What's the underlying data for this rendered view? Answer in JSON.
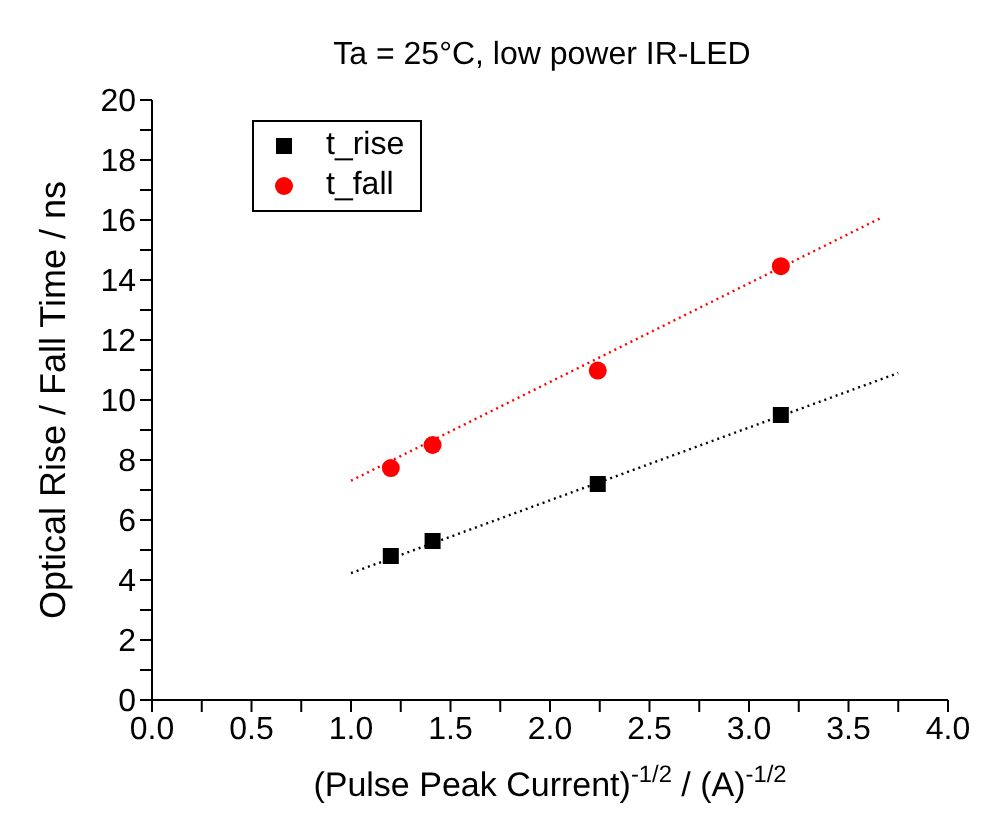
{
  "chart_data": {
    "type": "scatter",
    "title": "Ta = 25°C, low power IR-LED",
    "xlabel": "(Pulse Peak Current)$^{-1/2}$ / (A)$^{-1/2}$",
    "ylabel": "Optical Rise / Fall Time / ns",
    "x": [
      1.2,
      1.41,
      2.24,
      3.16
    ],
    "series": [
      {
        "name": "t_rise",
        "color": "#000000",
        "marker": "square",
        "values": [
          4.8,
          5.3,
          7.2,
          9.5
        ]
      },
      {
        "name": "t_fall",
        "color": "#ff0000",
        "marker": "circle",
        "values": [
          7.73,
          8.5,
          10.98,
          14.46
        ]
      },
      {
        "type": "line",
        "color": "#000000",
        "x": [
          1.0,
          3.75
        ],
        "values": [
          4.23,
          10.9
        ],
        "marker": "none",
        "line_style": "dotted"
      },
      {
        "type": "line",
        "color": "#ff0000",
        "x": [
          1.0,
          3.66
        ],
        "values": [
          7.31,
          16.06
        ],
        "marker": "none",
        "line_style": "dotted"
      }
    ],
    "xlim": [
      0,
      4
    ],
    "xticks": [
      {
        "value": 0,
        "label": "0.0"
      },
      {
        "value": 0.25,
        "label": null
      },
      {
        "value": 0.5,
        "label": "0.5"
      },
      {
        "value": 0.75,
        "label": null
      },
      {
        "value": 1,
        "label": "1.0"
      },
      {
        "value": 1.25,
        "label": null
      },
      {
        "value": 1.5,
        "label": "1.5"
      },
      {
        "value": 1.75,
        "label": null
      },
      {
        "value": 2,
        "label": "2.0"
      },
      {
        "value": 2.25,
        "label": null
      },
      {
        "value": 2.5,
        "label": "2.5"
      },
      {
        "value": 2.75,
        "label": null
      },
      {
        "value": 3,
        "label": "3.0"
      },
      {
        "value": 3.25,
        "label": null
      },
      {
        "value": 3.5,
        "label": "3.5"
      },
      {
        "value": 3.75,
        "label": null
      },
      {
        "value": 4,
        "label": "4.0"
      }
    ],
    "ylim": [
      0,
      20
    ],
    "yticks": [
      0,
      {
        "value": 1,
        "label": null
      },
      2,
      {
        "value": 3,
        "label": null
      },
      4,
      {
        "value": 5,
        "label": null
      },
      6,
      {
        "value": 7,
        "label": null
      },
      8,
      {
        "value": 9,
        "label": null
      },
      10,
      {
        "value": 11,
        "label": null
      },
      12,
      {
        "value": 13,
        "label": null
      },
      14,
      {
        "value": 15,
        "label": null
      },
      16,
      {
        "value": 17,
        "label": null
      },
      18,
      {
        "value": 19,
        "label": null
      },
      20
    ],
    "legend": "top left"
  }
}
